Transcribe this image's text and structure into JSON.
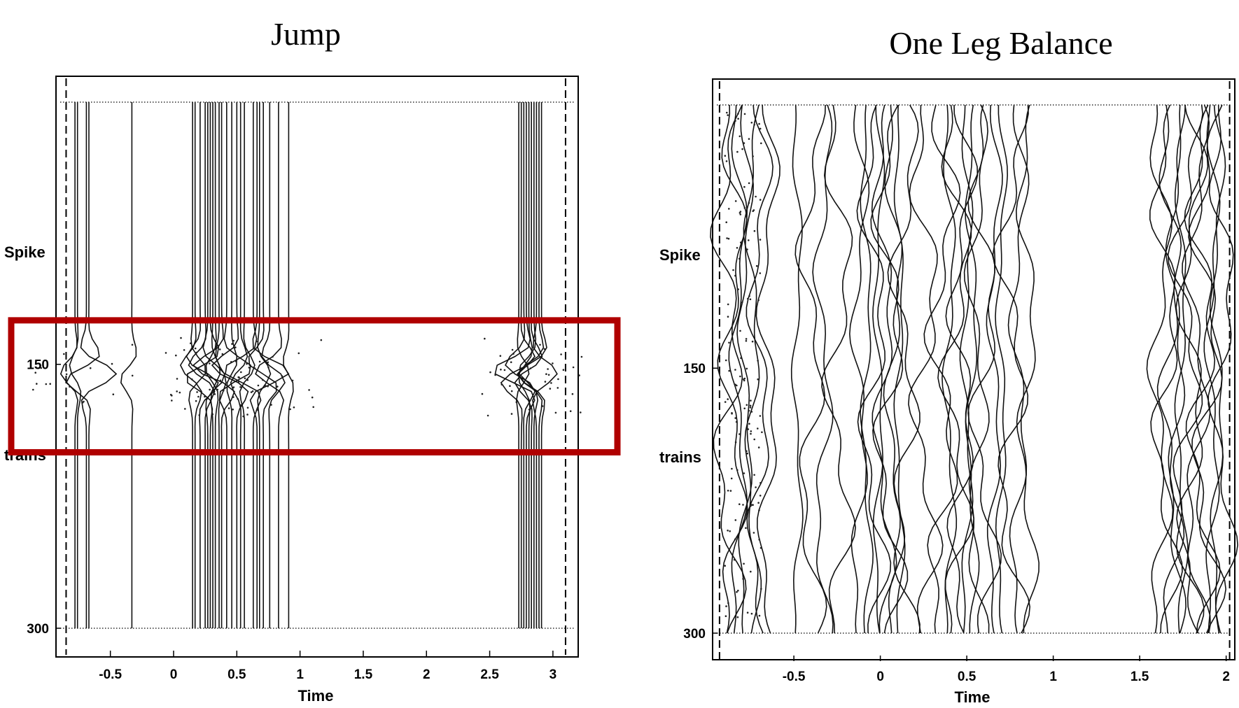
{
  "chart_data": [
    {
      "type": "line",
      "title": "Jump",
      "xlabel": "Time",
      "ylabel_top": "Spike",
      "ylabel_bottom": "trains",
      "xlim": [
        -0.93,
        3.2
      ],
      "ylim": [
        300,
        1
      ],
      "xticks": [
        "-0.5",
        "0",
        "0.5",
        "1",
        "1.5",
        "2",
        "2.5",
        "3"
      ],
      "yticks": [
        "150",
        "300"
      ],
      "boundaries": [
        -0.85,
        3.1
      ],
      "spike_times": [
        -0.78,
        -0.76,
        -0.69,
        -0.67,
        -0.33,
        0.15,
        0.17,
        0.21,
        0.25,
        0.27,
        0.29,
        0.31,
        0.33,
        0.36,
        0.38,
        0.42,
        0.46,
        0.5,
        0.53,
        0.56,
        0.63,
        0.66,
        0.68,
        0.71,
        0.76,
        0.83,
        0.91,
        2.73,
        2.75,
        2.77,
        2.79,
        2.81,
        2.83,
        2.85,
        2.87,
        2.89,
        2.91
      ],
      "highlight": {
        "y_from": 125,
        "y_to": 200,
        "color": "#b00000"
      }
    },
    {
      "type": "line",
      "title": "One Leg Balance",
      "xlabel": "Time",
      "ylabel_top": "Spike",
      "ylabel_bottom": "trains",
      "xlim": [
        -0.97,
        2.05
      ],
      "ylim": [
        300,
        1
      ],
      "xticks": [
        "-0.5",
        "0",
        "0.5",
        "1",
        "1.5",
        "2"
      ],
      "yticks": [
        "150",
        "300"
      ],
      "boundaries": [
        -0.93,
        2.02
      ],
      "spike_times": [
        -0.88,
        -0.85,
        -0.82,
        -0.78,
        -0.74,
        -0.7,
        -0.65,
        -0.48,
        -0.4,
        -0.33,
        -0.24,
        -0.12,
        -0.08,
        -0.04,
        -0.01,
        0.02,
        0.05,
        0.08,
        0.11,
        0.14,
        0.26,
        0.36,
        0.4,
        0.44,
        0.47,
        0.5,
        0.53,
        0.56,
        0.6,
        0.66,
        0.7,
        0.76,
        0.8,
        0.85,
        1.62,
        1.65,
        1.68,
        1.71,
        1.74,
        1.77,
        1.8,
        1.83,
        1.86,
        1.89,
        1.92,
        1.95,
        1.98
      ]
    }
  ]
}
